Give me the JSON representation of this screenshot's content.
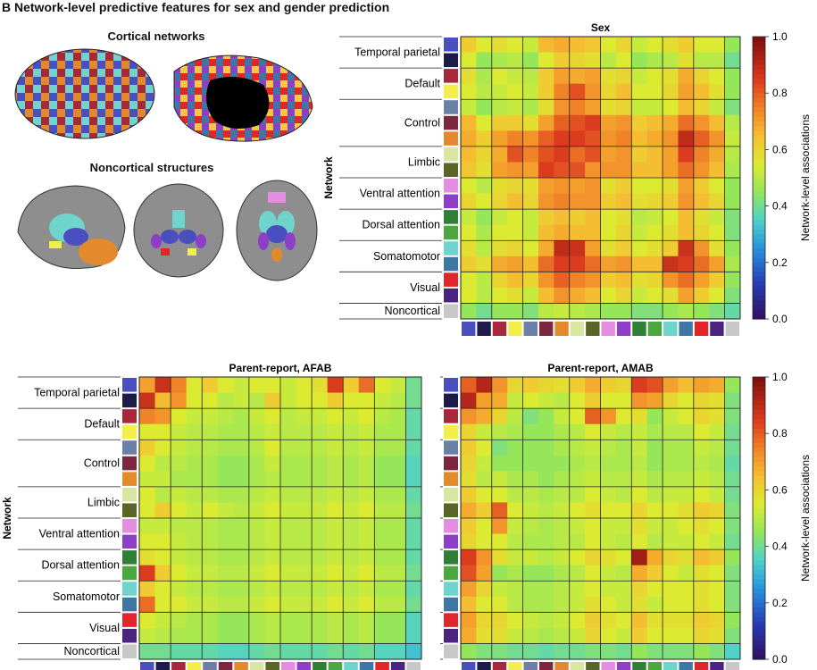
{
  "figure_title": "B Network-level predictive features for sex and gender prediction",
  "cortical_title": "Cortical networks",
  "noncortical_title": "Noncortical structures",
  "networks": [
    "Temporal parietal",
    "Default",
    "Control",
    "Limbic",
    "Ventral attention",
    "Dorsal attention",
    "Somatomotor",
    "Visual",
    "Noncortical"
  ],
  "network_subcolors": [
    [
      "#4a4fbf",
      "#1d1b4a"
    ],
    [
      "#a8273d",
      "#f2ee4a"
    ],
    [
      "#6a80a6",
      "#7d2640",
      "#e38a2d"
    ],
    [
      "#d7e6a0",
      "#5b6526"
    ],
    [
      "#e58de0",
      "#8e3fc8"
    ],
    [
      "#2f7f34",
      "#4aa83f"
    ],
    [
      "#6fd5cc",
      "#3d77a3"
    ],
    [
      "#e0262b",
      "#4a2480"
    ],
    [
      "#c8c8c8"
    ]
  ],
  "yaxis_label": "Network",
  "colorbar": {
    "label": "Network-level associations",
    "ticks": [
      "1.0",
      "0.8",
      "0.6",
      "0.4",
      "0.2",
      "0.0"
    ]
  },
  "chart_data": [
    {
      "type": "heatmap",
      "title": "Sex",
      "rows": [
        "Temporal parietal",
        "Default",
        "Control",
        "Limbic",
        "Ventral attention",
        "Dorsal attention",
        "Somatomotor",
        "Visual",
        "Noncortical"
      ],
      "ylabel": "Network",
      "colorbar_label": "Network-level associations",
      "vmin": 0.0,
      "vmax": 1.0,
      "values": [
        [
          0.62,
          0.55,
          0.58,
          0.55,
          0.52,
          0.66,
          0.68,
          0.65,
          0.63,
          0.55,
          0.6,
          0.52,
          0.55,
          0.58,
          0.62,
          0.55,
          0.55,
          0.45
        ],
        [
          0.55,
          0.45,
          0.48,
          0.5,
          0.45,
          0.55,
          0.62,
          0.6,
          0.58,
          0.5,
          0.55,
          0.45,
          0.48,
          0.5,
          0.58,
          0.5,
          0.5,
          0.4
        ],
        [
          0.58,
          0.48,
          0.55,
          0.52,
          0.5,
          0.62,
          0.7,
          0.68,
          0.7,
          0.58,
          0.6,
          0.52,
          0.55,
          0.58,
          0.68,
          0.6,
          0.55,
          0.45
        ],
        [
          0.55,
          0.5,
          0.52,
          0.55,
          0.52,
          0.62,
          0.75,
          0.82,
          0.72,
          0.6,
          0.65,
          0.55,
          0.55,
          0.6,
          0.7,
          0.65,
          0.58,
          0.45
        ],
        [
          0.52,
          0.45,
          0.5,
          0.52,
          0.48,
          0.58,
          0.72,
          0.75,
          0.7,
          0.58,
          0.6,
          0.52,
          0.52,
          0.55,
          0.65,
          0.6,
          0.52,
          0.42
        ],
        [
          0.66,
          0.55,
          0.62,
          0.62,
          0.58,
          0.7,
          0.8,
          0.82,
          0.85,
          0.7,
          0.72,
          0.62,
          0.65,
          0.68,
          0.78,
          0.72,
          0.65,
          0.5
        ],
        [
          0.68,
          0.62,
          0.7,
          0.75,
          0.72,
          0.8,
          0.85,
          0.85,
          0.82,
          0.72,
          0.75,
          0.65,
          0.68,
          0.72,
          0.9,
          0.8,
          0.72,
          0.52
        ],
        [
          0.65,
          0.6,
          0.68,
          0.82,
          0.75,
          0.82,
          0.85,
          0.78,
          0.82,
          0.7,
          0.72,
          0.62,
          0.65,
          0.7,
          0.85,
          0.75,
          0.68,
          0.5
        ],
        [
          0.63,
          0.58,
          0.7,
          0.72,
          0.7,
          0.85,
          0.82,
          0.82,
          0.72,
          0.72,
          0.72,
          0.65,
          0.65,
          0.7,
          0.78,
          0.72,
          0.65,
          0.48
        ],
        [
          0.55,
          0.5,
          0.58,
          0.6,
          0.58,
          0.7,
          0.72,
          0.7,
          0.72,
          0.58,
          0.62,
          0.55,
          0.55,
          0.58,
          0.7,
          0.62,
          0.55,
          0.45
        ],
        [
          0.6,
          0.55,
          0.6,
          0.65,
          0.6,
          0.72,
          0.75,
          0.72,
          0.72,
          0.62,
          0.65,
          0.58,
          0.6,
          0.62,
          0.72,
          0.65,
          0.6,
          0.45
        ],
        [
          0.52,
          0.45,
          0.52,
          0.55,
          0.52,
          0.62,
          0.65,
          0.62,
          0.65,
          0.55,
          0.58,
          0.5,
          0.52,
          0.55,
          0.65,
          0.58,
          0.52,
          0.42
        ],
        [
          0.55,
          0.48,
          0.55,
          0.55,
          0.52,
          0.65,
          0.68,
          0.65,
          0.65,
          0.55,
          0.6,
          0.52,
          0.55,
          0.58,
          0.65,
          0.6,
          0.55,
          0.42
        ],
        [
          0.58,
          0.5,
          0.58,
          0.6,
          0.55,
          0.68,
          0.9,
          0.88,
          0.7,
          0.58,
          0.62,
          0.55,
          0.58,
          0.62,
          0.88,
          0.72,
          0.58,
          0.45
        ],
        [
          0.62,
          0.58,
          0.68,
          0.7,
          0.65,
          0.78,
          0.85,
          0.85,
          0.78,
          0.7,
          0.72,
          0.65,
          0.65,
          0.88,
          0.85,
          0.78,
          0.7,
          0.48
        ],
        [
          0.55,
          0.5,
          0.6,
          0.65,
          0.6,
          0.72,
          0.8,
          0.75,
          0.72,
          0.62,
          0.65,
          0.58,
          0.6,
          0.72,
          0.78,
          0.7,
          0.62,
          0.45
        ],
        [
          0.55,
          0.5,
          0.55,
          0.58,
          0.52,
          0.65,
          0.72,
          0.68,
          0.65,
          0.55,
          0.6,
          0.52,
          0.55,
          0.58,
          0.7,
          0.62,
          0.55,
          0.42
        ],
        [
          0.45,
          0.4,
          0.45,
          0.45,
          0.42,
          0.5,
          0.52,
          0.5,
          0.48,
          0.45,
          0.45,
          0.42,
          0.42,
          0.45,
          0.48,
          0.45,
          0.42,
          0.38
        ]
      ]
    },
    {
      "type": "heatmap",
      "title": "Parent-report, AFAB",
      "rows": [
        "Temporal parietal",
        "Default",
        "Control",
        "Limbic",
        "Ventral attention",
        "Dorsal attention",
        "Somatomotor",
        "Visual",
        "Noncortical"
      ],
      "ylabel": "Network",
      "vmin": 0.0,
      "vmax": 1.0,
      "values": [
        [
          0.7,
          0.88,
          0.75,
          0.55,
          0.62,
          0.55,
          0.52,
          0.55,
          0.55,
          0.52,
          0.55,
          0.58,
          0.85,
          0.62,
          0.78,
          0.55,
          0.52,
          0.4
        ],
        [
          0.88,
          0.65,
          0.72,
          0.55,
          0.55,
          0.5,
          0.52,
          0.5,
          0.62,
          0.52,
          0.55,
          0.55,
          0.62,
          0.55,
          0.55,
          0.52,
          0.5,
          0.4
        ],
        [
          0.75,
          0.72,
          0.55,
          0.52,
          0.52,
          0.5,
          0.48,
          0.52,
          0.55,
          0.5,
          0.52,
          0.52,
          0.55,
          0.52,
          0.55,
          0.5,
          0.48,
          0.38
        ],
        [
          0.55,
          0.55,
          0.52,
          0.5,
          0.5,
          0.48,
          0.48,
          0.5,
          0.52,
          0.5,
          0.5,
          0.5,
          0.52,
          0.5,
          0.52,
          0.48,
          0.48,
          0.38
        ],
        [
          0.62,
          0.55,
          0.52,
          0.5,
          0.5,
          0.48,
          0.48,
          0.5,
          0.55,
          0.5,
          0.5,
          0.5,
          0.52,
          0.5,
          0.52,
          0.48,
          0.48,
          0.38
        ],
        [
          0.55,
          0.5,
          0.5,
          0.48,
          0.48,
          0.45,
          0.45,
          0.48,
          0.52,
          0.48,
          0.48,
          0.48,
          0.5,
          0.48,
          0.5,
          0.45,
          0.45,
          0.36
        ],
        [
          0.52,
          0.52,
          0.48,
          0.48,
          0.48,
          0.45,
          0.45,
          0.48,
          0.5,
          0.48,
          0.48,
          0.48,
          0.5,
          0.48,
          0.5,
          0.45,
          0.45,
          0.36
        ],
        [
          0.55,
          0.5,
          0.52,
          0.5,
          0.5,
          0.48,
          0.48,
          0.5,
          0.52,
          0.5,
          0.5,
          0.5,
          0.52,
          0.5,
          0.52,
          0.48,
          0.48,
          0.38
        ],
        [
          0.55,
          0.62,
          0.55,
          0.52,
          0.55,
          0.52,
          0.5,
          0.52,
          0.55,
          0.52,
          0.52,
          0.52,
          0.55,
          0.52,
          0.55,
          0.5,
          0.5,
          0.4
        ],
        [
          0.52,
          0.52,
          0.5,
          0.5,
          0.5,
          0.48,
          0.48,
          0.5,
          0.52,
          0.5,
          0.5,
          0.5,
          0.52,
          0.5,
          0.52,
          0.48,
          0.48,
          0.38
        ],
        [
          0.55,
          0.55,
          0.52,
          0.5,
          0.5,
          0.48,
          0.48,
          0.5,
          0.52,
          0.5,
          0.5,
          0.5,
          0.52,
          0.5,
          0.52,
          0.48,
          0.48,
          0.38
        ],
        [
          0.58,
          0.55,
          0.52,
          0.5,
          0.5,
          0.48,
          0.48,
          0.5,
          0.52,
          0.5,
          0.5,
          0.5,
          0.52,
          0.5,
          0.52,
          0.48,
          0.48,
          0.38
        ],
        [
          0.85,
          0.62,
          0.55,
          0.52,
          0.52,
          0.5,
          0.5,
          0.52,
          0.55,
          0.52,
          0.52,
          0.52,
          0.55,
          0.52,
          0.55,
          0.5,
          0.5,
          0.4
        ],
        [
          0.62,
          0.55,
          0.52,
          0.5,
          0.5,
          0.48,
          0.48,
          0.5,
          0.52,
          0.5,
          0.5,
          0.5,
          0.52,
          0.5,
          0.52,
          0.48,
          0.48,
          0.38
        ],
        [
          0.78,
          0.55,
          0.55,
          0.52,
          0.52,
          0.5,
          0.5,
          0.52,
          0.55,
          0.52,
          0.52,
          0.52,
          0.55,
          0.52,
          0.55,
          0.5,
          0.5,
          0.4
        ],
        [
          0.55,
          0.52,
          0.5,
          0.48,
          0.48,
          0.45,
          0.45,
          0.48,
          0.5,
          0.48,
          0.48,
          0.48,
          0.5,
          0.48,
          0.5,
          0.45,
          0.45,
          0.36
        ],
        [
          0.52,
          0.5,
          0.48,
          0.48,
          0.48,
          0.45,
          0.45,
          0.48,
          0.5,
          0.48,
          0.48,
          0.48,
          0.5,
          0.48,
          0.5,
          0.45,
          0.45,
          0.36
        ],
        [
          0.4,
          0.4,
          0.38,
          0.38,
          0.38,
          0.36,
          0.36,
          0.38,
          0.4,
          0.38,
          0.38,
          0.38,
          0.4,
          0.38,
          0.4,
          0.36,
          0.36,
          0.32
        ]
      ]
    },
    {
      "type": "heatmap",
      "title": "Parent-report, AMAB",
      "rows": [
        "Temporal parietal",
        "Default",
        "Control",
        "Limbic",
        "Ventral attention",
        "Dorsal attention",
        "Somatomotor",
        "Visual",
        "Noncortical"
      ],
      "ylabel": "Network",
      "colorbar_label": "Network-level associations",
      "vmin": 0.0,
      "vmax": 1.0,
      "values": [
        [
          0.8,
          0.92,
          0.72,
          0.6,
          0.62,
          0.6,
          0.58,
          0.62,
          0.68,
          0.62,
          0.6,
          0.85,
          0.82,
          0.7,
          0.65,
          0.7,
          0.68,
          0.45
        ],
        [
          0.92,
          0.7,
          0.68,
          0.52,
          0.55,
          0.52,
          0.5,
          0.55,
          0.62,
          0.55,
          0.55,
          0.72,
          0.7,
          0.6,
          0.55,
          0.6,
          0.58,
          0.42
        ],
        [
          0.72,
          0.68,
          0.6,
          0.5,
          0.42,
          0.45,
          0.52,
          0.55,
          0.8,
          0.72,
          0.55,
          0.58,
          0.45,
          0.52,
          0.55,
          0.6,
          0.58,
          0.42
        ],
        [
          0.6,
          0.52,
          0.5,
          0.48,
          0.45,
          0.45,
          0.48,
          0.5,
          0.55,
          0.52,
          0.5,
          0.52,
          0.48,
          0.5,
          0.5,
          0.55,
          0.52,
          0.4
        ],
        [
          0.62,
          0.55,
          0.42,
          0.45,
          0.45,
          0.45,
          0.48,
          0.5,
          0.52,
          0.5,
          0.48,
          0.52,
          0.45,
          0.48,
          0.48,
          0.52,
          0.5,
          0.4
        ],
        [
          0.6,
          0.52,
          0.45,
          0.45,
          0.45,
          0.45,
          0.45,
          0.48,
          0.5,
          0.48,
          0.48,
          0.5,
          0.45,
          0.48,
          0.48,
          0.5,
          0.48,
          0.38
        ],
        [
          0.58,
          0.5,
          0.52,
          0.48,
          0.48,
          0.45,
          0.48,
          0.5,
          0.52,
          0.5,
          0.5,
          0.52,
          0.48,
          0.5,
          0.5,
          0.52,
          0.5,
          0.4
        ],
        [
          0.62,
          0.55,
          0.55,
          0.5,
          0.5,
          0.48,
          0.5,
          0.5,
          0.55,
          0.52,
          0.5,
          0.55,
          0.5,
          0.52,
          0.52,
          0.55,
          0.52,
          0.4
        ],
        [
          0.68,
          0.62,
          0.8,
          0.55,
          0.52,
          0.5,
          0.52,
          0.55,
          0.58,
          0.55,
          0.55,
          0.6,
          0.55,
          0.55,
          0.58,
          0.62,
          0.6,
          0.42
        ],
        [
          0.62,
          0.55,
          0.72,
          0.52,
          0.5,
          0.48,
          0.5,
          0.52,
          0.55,
          0.52,
          0.52,
          0.58,
          0.52,
          0.52,
          0.55,
          0.58,
          0.55,
          0.42
        ],
        [
          0.6,
          0.55,
          0.55,
          0.5,
          0.48,
          0.48,
          0.5,
          0.5,
          0.55,
          0.52,
          0.5,
          0.55,
          0.5,
          0.52,
          0.52,
          0.55,
          0.52,
          0.4
        ],
        [
          0.85,
          0.72,
          0.58,
          0.52,
          0.52,
          0.5,
          0.52,
          0.55,
          0.6,
          0.58,
          0.55,
          0.95,
          0.68,
          0.6,
          0.58,
          0.65,
          0.62,
          0.45
        ],
        [
          0.82,
          0.7,
          0.45,
          0.48,
          0.45,
          0.45,
          0.48,
          0.5,
          0.55,
          0.52,
          0.5,
          0.68,
          0.62,
          0.55,
          0.52,
          0.58,
          0.55,
          0.42
        ],
        [
          0.7,
          0.6,
          0.52,
          0.5,
          0.48,
          0.48,
          0.5,
          0.52,
          0.55,
          0.52,
          0.52,
          0.6,
          0.55,
          0.55,
          0.55,
          0.58,
          0.55,
          0.42
        ],
        [
          0.65,
          0.55,
          0.55,
          0.5,
          0.48,
          0.48,
          0.5,
          0.52,
          0.58,
          0.55,
          0.52,
          0.58,
          0.52,
          0.55,
          0.55,
          0.58,
          0.55,
          0.42
        ],
        [
          0.7,
          0.6,
          0.6,
          0.55,
          0.52,
          0.5,
          0.52,
          0.55,
          0.62,
          0.58,
          0.55,
          0.65,
          0.58,
          0.58,
          0.58,
          0.62,
          0.6,
          0.45
        ],
        [
          0.68,
          0.58,
          0.58,
          0.52,
          0.5,
          0.48,
          0.5,
          0.52,
          0.6,
          0.55,
          0.52,
          0.62,
          0.55,
          0.55,
          0.55,
          0.6,
          0.58,
          0.42
        ],
        [
          0.45,
          0.42,
          0.42,
          0.4,
          0.4,
          0.38,
          0.4,
          0.4,
          0.42,
          0.42,
          0.4,
          0.45,
          0.42,
          0.42,
          0.42,
          0.45,
          0.42,
          0.35
        ]
      ]
    }
  ]
}
